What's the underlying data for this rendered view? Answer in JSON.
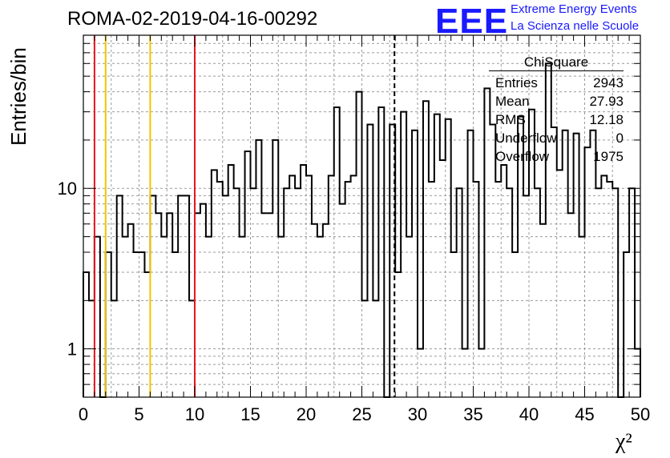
{
  "title": "ROMA-02-2019-04-16-00292",
  "logo": {
    "text": "EEE",
    "line1": "Extreme Energy Events",
    "line2": "La Scienza nelle Scuole",
    "color": "#1a1aff"
  },
  "stats": {
    "name": "ChiSquare",
    "rows": [
      {
        "label": "Entries",
        "value": "2943"
      },
      {
        "label": "Mean",
        "value": "27.93"
      },
      {
        "label": "RMS",
        "value": "12.18"
      },
      {
        "label": "Underflow",
        "value": "0"
      },
      {
        "label": "Overflow",
        "value": "1975"
      }
    ]
  },
  "chart_data": {
    "type": "bar",
    "style": "step-histogram",
    "xlabel": "χ²",
    "ylabel": "Entries/bin",
    "xlim": [
      0,
      50
    ],
    "ylim": [
      0.5,
      90
    ],
    "yscale": "log",
    "bin_width": 0.5,
    "grid": true,
    "x_ticks": [
      "0",
      "5",
      "10",
      "15",
      "20",
      "25",
      "30",
      "35",
      "40",
      "45",
      "50"
    ],
    "y_ticks": [
      {
        "value": 1,
        "label": "1"
      },
      {
        "value": 10,
        "label": "10"
      }
    ],
    "values": [
      3,
      2,
      5,
      0,
      4,
      2,
      9,
      5,
      6,
      4,
      4,
      3,
      9,
      7,
      5,
      7,
      4,
      9,
      9,
      2,
      7,
      8,
      5,
      13,
      11,
      9,
      14,
      10,
      5,
      17,
      10,
      20,
      7,
      7,
      20,
      5,
      10,
      12,
      10,
      14,
      12,
      6,
      5,
      6,
      12,
      32,
      8,
      11,
      12,
      40,
      2,
      25,
      2,
      32,
      0,
      25,
      3,
      30,
      5,
      23,
      1,
      35,
      11,
      29,
      15,
      27,
      4,
      10,
      1,
      23,
      11,
      1,
      42,
      25,
      11,
      14,
      10,
      4,
      28,
      9,
      31,
      10,
      6,
      60,
      24,
      13,
      23,
      7,
      22,
      5,
      18,
      23,
      10,
      12,
      11,
      10,
      0,
      4,
      10,
      1
    ],
    "vlines": [
      {
        "x": 1,
        "color": "#e8141c",
        "style": "solid"
      },
      {
        "x": 2,
        "color": "#f2c400",
        "style": "solid"
      },
      {
        "x": 6,
        "color": "#f2c400",
        "style": "solid"
      },
      {
        "x": 10,
        "color": "#e8141c",
        "style": "solid"
      },
      {
        "x": 27.93,
        "color": "#000000",
        "style": "dashed"
      }
    ]
  }
}
